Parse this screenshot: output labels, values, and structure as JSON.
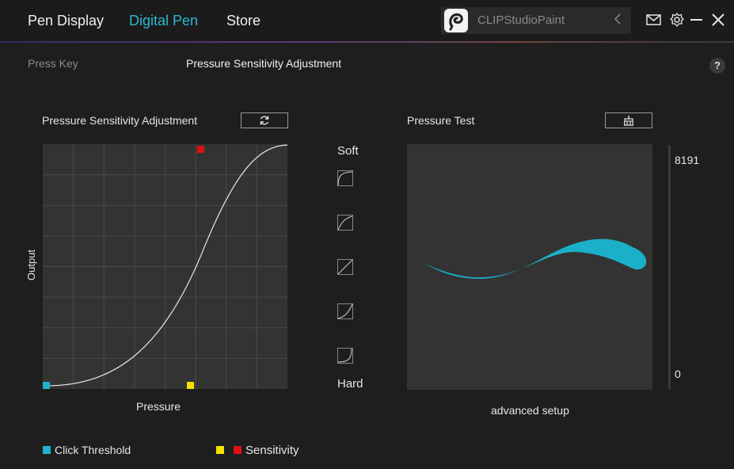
{
  "header": {
    "nav": [
      "Pen Display",
      "Digital Pen",
      "Store"
    ],
    "active_nav": "Digital Pen",
    "app_selector": {
      "name": "CLIPStudioPaint"
    }
  },
  "subtabs": [
    "Press Key",
    "Pressure Sensitivity Adjustment"
  ],
  "help_label": "?",
  "curve_panel": {
    "title": "Pressure Sensitivity Adjustment",
    "y_axis": "Output",
    "x_axis": "Pressure"
  },
  "presets": {
    "top_label": "Soft",
    "bottom_label": "Hard"
  },
  "test_panel": {
    "title": "Pressure Test",
    "max_value": "8191",
    "min_value": "0",
    "advanced_link": "advanced setup"
  },
  "legend": {
    "click_threshold": "Click Threshold",
    "sensitivity": "Sensitivity"
  },
  "colors": {
    "accent": "#2bb8d4",
    "threshold": "#1eb3cc",
    "sensitivity_yellow": "#f5e000",
    "sensitivity_red": "#e01010",
    "stroke": "#1ab0c8"
  }
}
